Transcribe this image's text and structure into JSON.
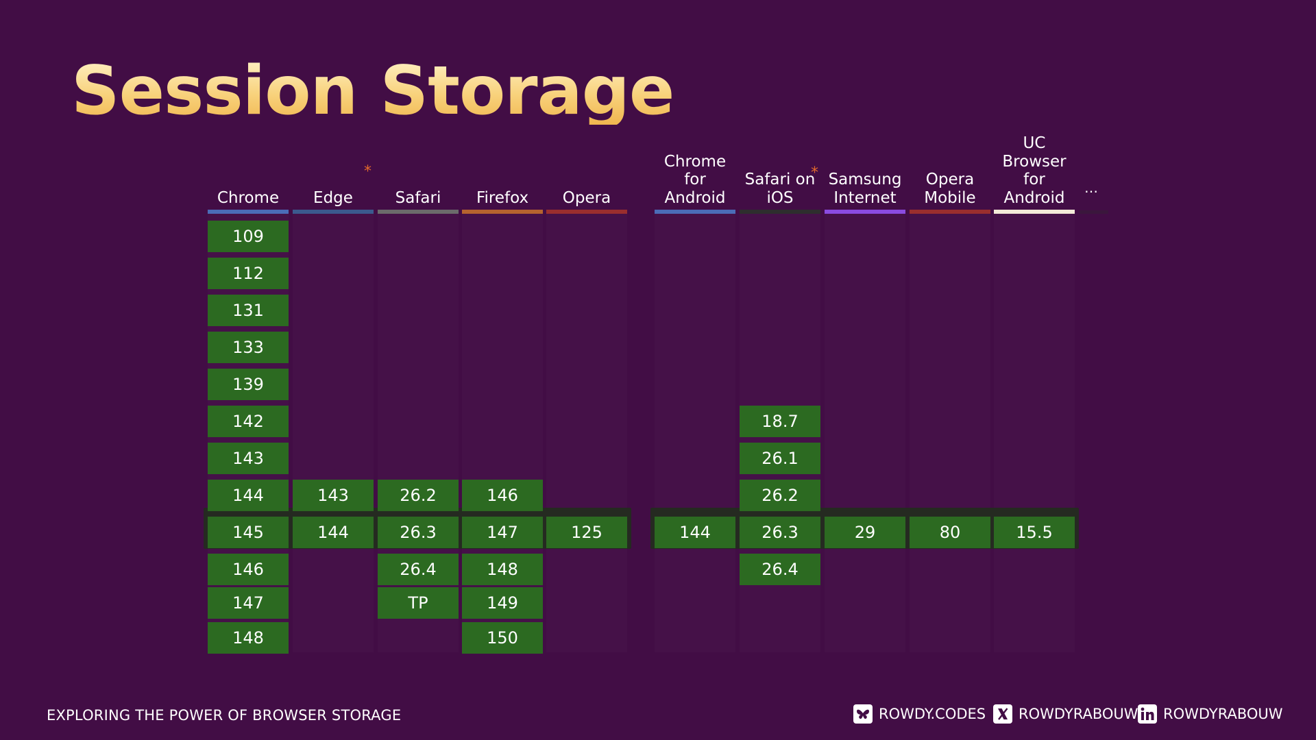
{
  "title": "Session Storage",
  "colors": {
    "background": "#420d45",
    "supported_cell": "#2c6a21",
    "current_row_highlight": "#252a21",
    "asterisk": "#e46a2c"
  },
  "browsers": [
    {
      "id": "chrome",
      "name": "Chrome",
      "bar_color": "#4b6cb7",
      "versions": [
        "109",
        "112",
        "131",
        "133",
        "139",
        "142",
        "143",
        "144",
        "145",
        "146",
        "147",
        "148"
      ],
      "current_index": 8,
      "current_slot": 8,
      "asterisk": false
    },
    {
      "id": "edge",
      "name": "Edge",
      "bar_color": "#3b5a8e",
      "versions": [
        "143",
        "144"
      ],
      "current_index": 1,
      "current_slot": 8,
      "asterisk": true
    },
    {
      "id": "safari",
      "name": "Safari",
      "bar_color": "#6b6b6b",
      "versions": [
        "26.2",
        "26.3",
        "26.4",
        "TP"
      ],
      "current_index": 1,
      "current_slot": 8,
      "asterisk": false
    },
    {
      "id": "firefox",
      "name": "Firefox",
      "bar_color": "#b5632f",
      "versions": [
        "146",
        "147",
        "148",
        "149",
        "150"
      ],
      "current_index": 1,
      "current_slot": 8,
      "asterisk": false
    },
    {
      "id": "opera",
      "name": "Opera",
      "bar_color": "#9a2e2e",
      "versions": [
        "125"
      ],
      "current_index": 0,
      "current_slot": 8,
      "asterisk": false
    },
    {
      "id": "chrome-android",
      "name": "Chrome\nfor\nAndroid",
      "bar_color": "#4b6cb7",
      "versions": [
        "144"
      ],
      "current_index": 0,
      "current_slot": 8,
      "asterisk": false
    },
    {
      "id": "safari-ios",
      "name": "Safari on\niOS",
      "bar_color": "#2e2e2e",
      "versions": [
        "18.7",
        "26.1",
        "26.2",
        "26.3",
        "26.4"
      ],
      "current_index": 3,
      "current_slot": 8,
      "asterisk": true
    },
    {
      "id": "samsung",
      "name": "Samsung\nInternet",
      "bar_color": "#8a4be0",
      "versions": [
        "29"
      ],
      "current_index": 0,
      "current_slot": 8,
      "asterisk": false
    },
    {
      "id": "opera-mobile",
      "name": "Opera\nMobile",
      "bar_color": "#9a2e2e",
      "versions": [
        "80"
      ],
      "current_index": 0,
      "current_slot": 8,
      "asterisk": false
    },
    {
      "id": "uc-android",
      "name": "UC\nBrowser\nfor\nAndroid",
      "bar_color": "#f3ead8",
      "versions": [
        "15.5"
      ],
      "current_index": 0,
      "current_slot": 8,
      "asterisk": false
    }
  ],
  "more_label": "…",
  "footer": {
    "tagline": "EXPLORING THE POWER OF BROWSER STORAGE",
    "social": [
      {
        "icon": "butterfly-icon",
        "label": "ROWDY.CODES"
      },
      {
        "icon": "x-icon",
        "label": "ROWDYRABOUW"
      },
      {
        "icon": "linkedin-icon",
        "label": "ROWDYRABOUW"
      }
    ]
  }
}
